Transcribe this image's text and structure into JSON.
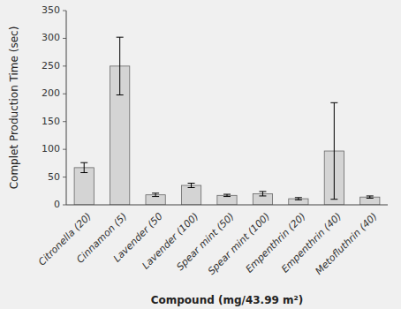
{
  "chart_data": {
    "type": "bar",
    "categories": [
      "Citronella (20)",
      "Cinnamon (5)",
      "Lavender (50",
      "Lavender (100)",
      "Spear mint (50)",
      "Spear mint (100)",
      "Empenthrin (20)",
      "Empenthrin (40)",
      "Metofluthrin (40)"
    ],
    "values": [
      67,
      250,
      18,
      35,
      17,
      20,
      11,
      97,
      14
    ],
    "errors": [
      9,
      52,
      3,
      4,
      2,
      4,
      2,
      87,
      2
    ],
    "color": "#d4d4d4",
    "xlabel": "Compound (mg/43.99 m²)",
    "ylabel": "Complet Production Time (sec)",
    "ylim": [
      0,
      350
    ],
    "yticks": [
      0,
      50,
      100,
      150,
      200,
      250,
      300,
      350
    ],
    "grid": false
  }
}
